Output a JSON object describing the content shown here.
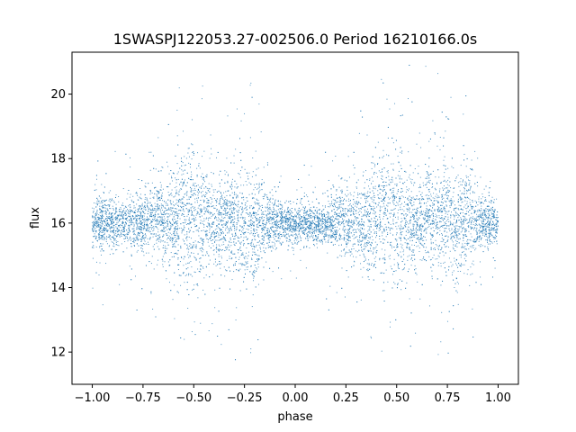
{
  "chart_data": {
    "type": "scatter",
    "title": "1SWASPJ122053.27-002506.0 Period 16210166.0s",
    "xlabel": "phase",
    "ylabel": "flux",
    "xlim": [
      -1.1,
      1.1
    ],
    "ylim": [
      11.0,
      21.3
    ],
    "xticks": [
      -1.0,
      -0.75,
      -0.5,
      -0.25,
      0.0,
      0.25,
      0.5,
      0.75,
      1.0
    ],
    "xtick_labels": [
      "−1.00",
      "−0.75",
      "−0.50",
      "−0.25",
      "0.00",
      "0.25",
      "0.50",
      "0.75",
      "1.00"
    ],
    "yticks": [
      12,
      14,
      16,
      18,
      20
    ],
    "ytick_labels": [
      "12",
      "14",
      "16",
      "18",
      "20"
    ],
    "grid": false,
    "marker_color": "#1f77b4",
    "series": [
      {
        "name": "",
        "typical_flux": 16.0,
        "note_x_range": [
          -1.0,
          1.0
        ],
        "x": [
          -1.0,
          -0.95,
          -0.9,
          -0.85,
          -0.8,
          -0.75,
          -0.7,
          -0.65,
          -0.6,
          -0.55,
          -0.5,
          -0.45,
          -0.4,
          -0.35,
          -0.3,
          -0.25,
          -0.2,
          -0.15,
          -0.1,
          -0.05,
          0.0,
          0.05,
          0.1,
          0.15,
          0.2,
          0.25,
          0.3,
          0.35,
          0.4,
          0.45,
          0.5,
          0.55,
          0.6,
          0.65,
          0.7,
          0.75,
          0.8,
          0.85,
          0.9,
          0.95,
          1.0
        ],
        "y": [
          16.0,
          16.0,
          16.0,
          16.0,
          16.1,
          16.0,
          16.2,
          16.1,
          16.2,
          16.3,
          16.2,
          16.1,
          16.0,
          16.1,
          16.0,
          15.9,
          15.8,
          15.9,
          16.0,
          16.0,
          16.0,
          16.0,
          15.9,
          16.0,
          16.1,
          16.0,
          16.1,
          16.0,
          16.2,
          16.3,
          16.2,
          16.1,
          16.0,
          16.2,
          16.1,
          16.2,
          16.0,
          16.1,
          16.0,
          16.0,
          16.0
        ],
        "spread": [
          0.4,
          0.5,
          0.5,
          0.4,
          0.6,
          0.6,
          0.9,
          0.8,
          1.0,
          1.3,
          1.5,
          1.2,
          0.8,
          0.9,
          1.0,
          1.1,
          1.0,
          0.7,
          0.5,
          0.4,
          0.4,
          0.4,
          0.4,
          0.4,
          0.6,
          0.8,
          0.8,
          0.9,
          1.2,
          1.4,
          1.4,
          1.0,
          0.8,
          1.0,
          1.1,
          1.2,
          1.1,
          1.0,
          0.6,
          0.5,
          0.4
        ]
      }
    ]
  }
}
